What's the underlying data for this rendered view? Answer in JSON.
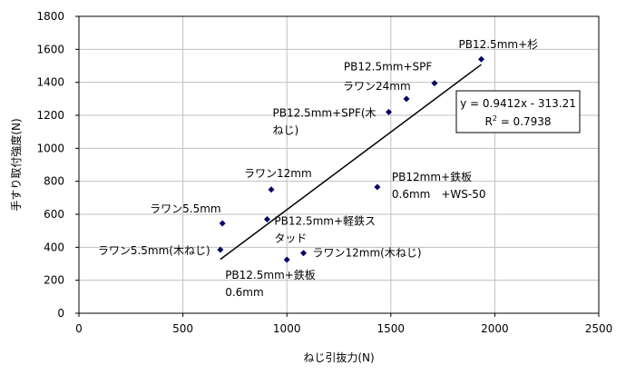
{
  "chart_data": {
    "type": "scatter",
    "xlabel": "ねじ引抜力(N)",
    "ylabel": "手すり取付強度(N)",
    "xlim": [
      0,
      2500
    ],
    "ylim": [
      0,
      1800
    ],
    "xticks": [
      0,
      500,
      1000,
      1500,
      2000,
      2500
    ],
    "yticks": [
      0,
      200,
      400,
      600,
      800,
      1000,
      1200,
      1400,
      1600,
      1800
    ],
    "grid": true,
    "marker_color": "#000066",
    "points": [
      {
        "x": 1935,
        "y": 1540,
        "label": [
          "PB12.5mm+杉"
        ],
        "dx": -25,
        "dy": -12
      },
      {
        "x": 1710,
        "y": 1395,
        "label": [
          "PB12.5mm+SPF"
        ],
        "dx": -100,
        "dy": -14
      },
      {
        "x": 1575,
        "y": 1300,
        "label": [
          "ラワン24mm"
        ],
        "dx": -70,
        "dy": -10
      },
      {
        "x": 1490,
        "y": 1220,
        "label": [
          "PB12.5mm+SPF(木",
          "ねじ)"
        ],
        "dx": -128,
        "dy": 5
      },
      {
        "x": 925,
        "y": 750,
        "label": [
          "ラワン12mm"
        ],
        "dx": -30,
        "dy": -14
      },
      {
        "x": 1435,
        "y": 765,
        "label": [
          "PB12mm+鉄板",
          "0.6mm　+WS-50"
        ],
        "dx": 16,
        "dy": -7
      },
      {
        "x": 690,
        "y": 545,
        "label": [
          "ラワン5.5mm"
        ],
        "dx": -80,
        "dy": -12
      },
      {
        "x": 905,
        "y": 570,
        "label": [
          "PB12.5mm+軽鉄ス",
          "タッド"
        ],
        "dx": 8,
        "dy": 6
      },
      {
        "x": 680,
        "y": 385,
        "label": [
          "ラワン5.5mm(木ねじ)"
        ],
        "dx": -135,
        "dy": 5
      },
      {
        "x": 1080,
        "y": 365,
        "label": [
          "ラワン12mm(木ねじ)"
        ],
        "dx": 10,
        "dy": 4
      },
      {
        "x": 1000,
        "y": 325,
        "label": [
          "PB12.5mm+鉄板",
          "0.6mm"
        ],
        "dx": -68,
        "dy": 21
      }
    ],
    "trendline": {
      "slope": 0.9412,
      "intercept": -313.21,
      "x_from": 680,
      "x_to": 1935
    },
    "annotation": {
      "equation": "y = 0.9412x - 313.21",
      "r2_prefix": "R",
      "r2_sup": "2",
      "r2_value": " = 0.7938"
    }
  }
}
